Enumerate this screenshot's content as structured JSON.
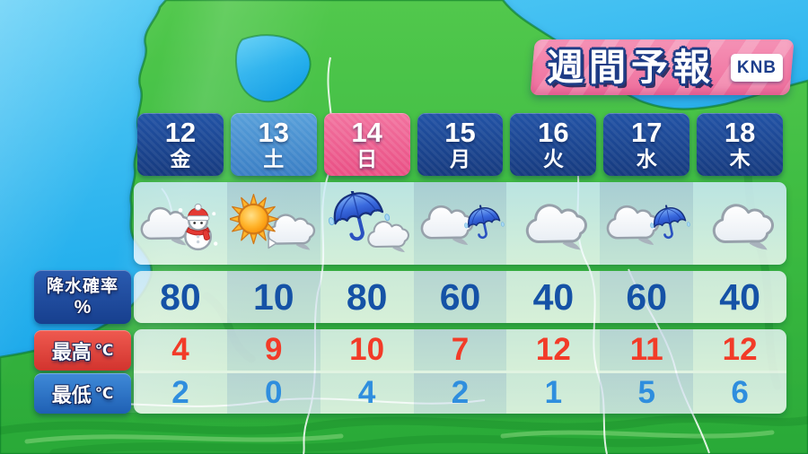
{
  "banner": {
    "title": "週間予報",
    "logo": "KNB"
  },
  "labels": {
    "precip_line1": "降水確率",
    "precip_line2": "%",
    "max": "最高",
    "min": "最低",
    "deg": "℃"
  },
  "columns": [
    {
      "date": "12",
      "day": "金",
      "type": "weekday",
      "icon": "snow-cloud",
      "precip": "80",
      "max": "4",
      "min": "2"
    },
    {
      "date": "13",
      "day": "土",
      "type": "saturday",
      "icon": "sun-then-cloud",
      "precip": "10",
      "max": "9",
      "min": "0"
    },
    {
      "date": "14",
      "day": "日",
      "type": "sunday",
      "icon": "umbrella-then-cloud",
      "precip": "80",
      "max": "10",
      "min": "4"
    },
    {
      "date": "15",
      "day": "月",
      "type": "weekday",
      "icon": "cloud-umbrella",
      "precip": "60",
      "max": "7",
      "min": "2"
    },
    {
      "date": "16",
      "day": "火",
      "type": "weekday",
      "icon": "cloud",
      "precip": "40",
      "max": "12",
      "min": "1"
    },
    {
      "date": "17",
      "day": "水",
      "type": "weekday",
      "icon": "cloud-umbrella",
      "precip": "60",
      "max": "11",
      "min": "5"
    },
    {
      "date": "18",
      "day": "木",
      "type": "weekday",
      "icon": "cloud",
      "precip": "40",
      "max": "12",
      "min": "6"
    }
  ],
  "colors": {
    "weekday_box": "#1d4694",
    "saturday_box": "#4792d2",
    "sunday_box": "#ee5c8d",
    "banner_pink": "#f387ae",
    "precip_value": "#1552a6",
    "max_value": "#f23b28",
    "min_value": "#2f8ede",
    "precip_label_bg": "#1e4da0",
    "max_label_bg": "#e0433c",
    "min_label_bg": "#2f77c8",
    "sea": "#2ab4ee",
    "land": "#3fbf44"
  },
  "chart_data": {
    "type": "table",
    "title": "週間予報",
    "categories": [
      "12 金",
      "13 土",
      "14 日",
      "15 月",
      "16 火",
      "17 水",
      "18 木"
    ],
    "series": [
      {
        "name": "天気",
        "values": [
          "雪(雲+雪だるま)",
          "晴れのち曇り",
          "雨のち曇り",
          "曇り時々雨",
          "曇り",
          "曇り時々雨",
          "曇り"
        ]
      },
      {
        "name": "降水確率 %",
        "values": [
          80,
          10,
          80,
          60,
          40,
          60,
          40
        ]
      },
      {
        "name": "最高 ℃",
        "values": [
          4,
          9,
          10,
          7,
          12,
          11,
          12
        ]
      },
      {
        "name": "最低 ℃",
        "values": [
          2,
          0,
          4,
          2,
          1,
          5,
          6
        ]
      }
    ]
  }
}
